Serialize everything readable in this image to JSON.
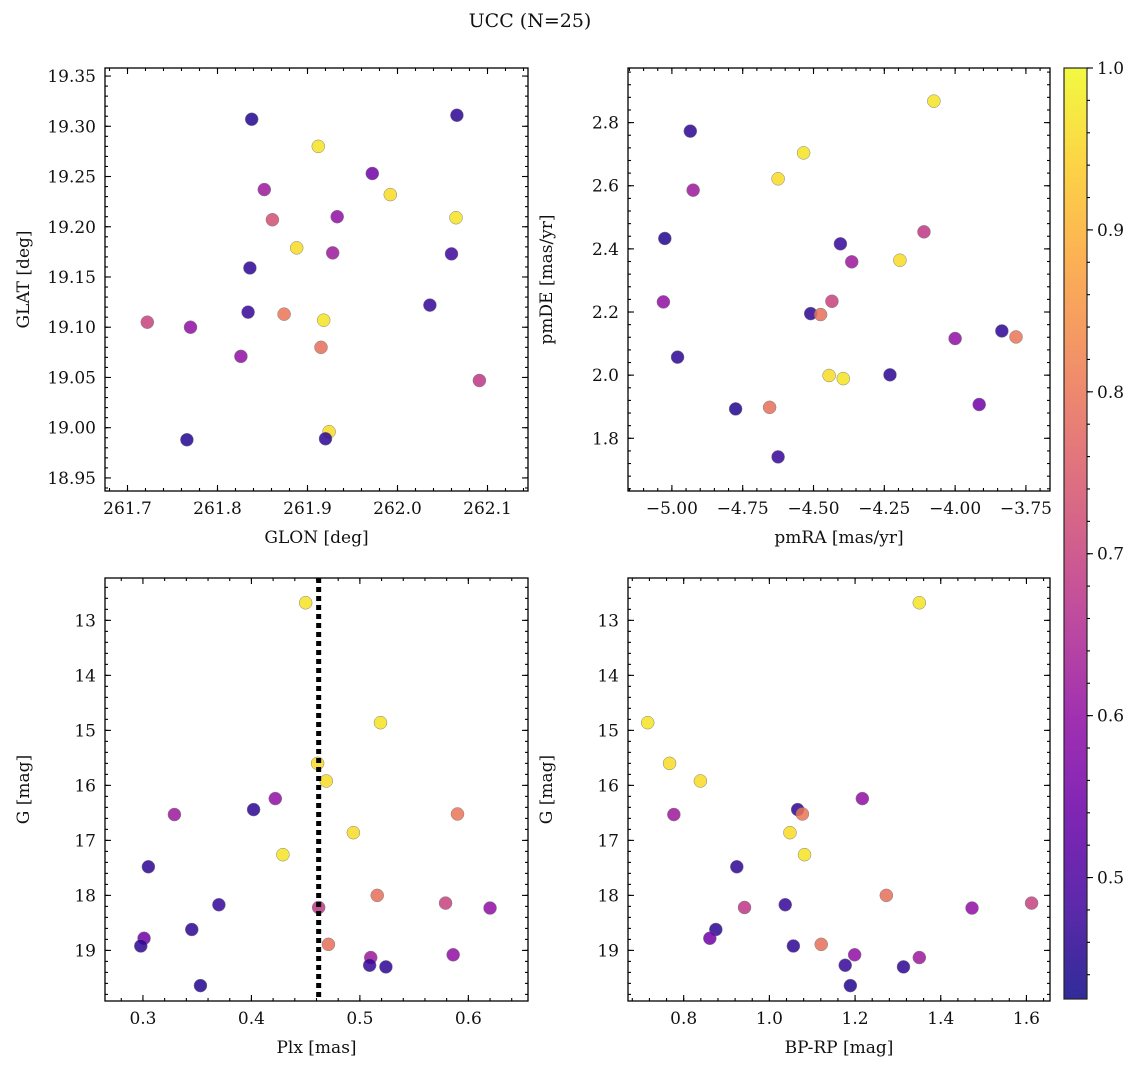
{
  "figure": {
    "title": "UCC (N=25)"
  },
  "colors": {
    "colormap": "plasma",
    "dotted_line": "#000000"
  },
  "chart_data": [
    {
      "type": "scatter",
      "id": "glon-glat",
      "xlabel": "GLON [deg]",
      "ylabel": "GLAT [deg]",
      "xlim": [
        261.675,
        262.145
      ],
      "ylim": [
        18.937,
        19.358
      ],
      "xticks": [
        261.7,
        261.8,
        261.9,
        262.0,
        262.1
      ],
      "xticklabels": [
        "261.7",
        "261.8",
        "261.9",
        "262.0",
        "262.1"
      ],
      "yticks": [
        18.95,
        19.0,
        19.05,
        19.1,
        19.15,
        19.2,
        19.25,
        19.3,
        19.35
      ],
      "yticklabels": [
        "18.95",
        "19.00",
        "19.05",
        "19.10",
        "19.15",
        "19.20",
        "19.25",
        "19.30",
        "19.35"
      ],
      "invert_y": false,
      "points": [
        {
          "x": 261.838,
          "y": 19.307,
          "c": 0.45
        },
        {
          "x": 262.066,
          "y": 19.311,
          "c": 0.46
        },
        {
          "x": 261.912,
          "y": 19.28,
          "c": 0.97
        },
        {
          "x": 261.972,
          "y": 19.253,
          "c": 0.55
        },
        {
          "x": 261.852,
          "y": 19.237,
          "c": 0.62
        },
        {
          "x": 261.992,
          "y": 19.232,
          "c": 0.96
        },
        {
          "x": 262.065,
          "y": 19.209,
          "c": 0.97
        },
        {
          "x": 261.861,
          "y": 19.207,
          "c": 0.73
        },
        {
          "x": 261.933,
          "y": 19.21,
          "c": 0.6
        },
        {
          "x": 261.888,
          "y": 19.179,
          "c": 0.96
        },
        {
          "x": 261.928,
          "y": 19.174,
          "c": 0.62
        },
        {
          "x": 262.06,
          "y": 19.173,
          "c": 0.48
        },
        {
          "x": 261.836,
          "y": 19.159,
          "c": 0.46
        },
        {
          "x": 262.036,
          "y": 19.122,
          "c": 0.47
        },
        {
          "x": 261.834,
          "y": 19.115,
          "c": 0.47
        },
        {
          "x": 261.874,
          "y": 19.113,
          "c": 0.8
        },
        {
          "x": 261.918,
          "y": 19.107,
          "c": 0.97
        },
        {
          "x": 261.722,
          "y": 19.105,
          "c": 0.7
        },
        {
          "x": 261.77,
          "y": 19.1,
          "c": 0.6
        },
        {
          "x": 261.915,
          "y": 19.08,
          "c": 0.79
        },
        {
          "x": 261.826,
          "y": 19.071,
          "c": 0.6
        },
        {
          "x": 262.091,
          "y": 19.047,
          "c": 0.68
        },
        {
          "x": 261.924,
          "y": 18.996,
          "c": 0.96
        },
        {
          "x": 261.766,
          "y": 18.988,
          "c": 0.45
        },
        {
          "x": 261.92,
          "y": 18.989,
          "c": 0.46
        }
      ]
    },
    {
      "type": "scatter",
      "id": "pm",
      "xlabel": "pmRA [mas/yr]",
      "ylabel": "pmDE [mas/yr]",
      "xlim": [
        -5.155,
        -3.665
      ],
      "ylim": [
        1.633,
        2.973
      ],
      "xticks": [
        -5.0,
        -4.75,
        -4.5,
        -4.25,
        -4.0,
        -3.75
      ],
      "xticklabels": [
        "−5.00",
        "−4.75",
        "−4.50",
        "−4.25",
        "−4.00",
        "−3.75"
      ],
      "yticks": [
        1.8,
        2.0,
        2.2,
        2.4,
        2.6,
        2.8
      ],
      "yticklabels": [
        "1.8",
        "2.0",
        "2.2",
        "2.4",
        "2.6",
        "2.8"
      ],
      "invert_y": false,
      "points": [
        {
          "x": -4.075,
          "y": 2.868,
          "c": 0.97
        },
        {
          "x": -4.935,
          "y": 2.773,
          "c": 0.46
        },
        {
          "x": -4.535,
          "y": 2.704,
          "c": 0.97
        },
        {
          "x": -4.625,
          "y": 2.622,
          "c": 0.96
        },
        {
          "x": -4.925,
          "y": 2.586,
          "c": 0.62
        },
        {
          "x": -4.11,
          "y": 2.454,
          "c": 0.68
        },
        {
          "x": -5.025,
          "y": 2.433,
          "c": 0.45
        },
        {
          "x": -4.405,
          "y": 2.416,
          "c": 0.47
        },
        {
          "x": -4.195,
          "y": 2.364,
          "c": 0.96
        },
        {
          "x": -4.365,
          "y": 2.359,
          "c": 0.62
        },
        {
          "x": -4.435,
          "y": 2.234,
          "c": 0.7
        },
        {
          "x": -5.03,
          "y": 2.232,
          "c": 0.6
        },
        {
          "x": -4.51,
          "y": 2.195,
          "c": 0.46
        },
        {
          "x": -4.475,
          "y": 2.192,
          "c": 0.79
        },
        {
          "x": -3.835,
          "y": 2.14,
          "c": 0.46
        },
        {
          "x": -3.785,
          "y": 2.121,
          "c": 0.8
        },
        {
          "x": -4.0,
          "y": 2.116,
          "c": 0.6
        },
        {
          "x": -4.98,
          "y": 2.057,
          "c": 0.46
        },
        {
          "x": -4.23,
          "y": 2.001,
          "c": 0.46
        },
        {
          "x": -4.445,
          "y": 1.999,
          "c": 0.96
        },
        {
          "x": -4.395,
          "y": 1.989,
          "c": 0.97
        },
        {
          "x": -3.915,
          "y": 1.907,
          "c": 0.55
        },
        {
          "x": -4.655,
          "y": 1.898,
          "c": 0.79
        },
        {
          "x": -4.775,
          "y": 1.893,
          "c": 0.45
        },
        {
          "x": -4.625,
          "y": 1.741,
          "c": 0.47
        }
      ]
    },
    {
      "type": "scatter",
      "id": "plx-g",
      "xlabel": "Plx [mas]",
      "ylabel": "G [mag]",
      "xlim": [
        0.265,
        0.655
      ],
      "ylim": [
        19.92,
        12.23
      ],
      "xticks": [
        0.3,
        0.4,
        0.5,
        0.6
      ],
      "xticklabels": [
        "0.3",
        "0.4",
        "0.5",
        "0.6"
      ],
      "yticks": [
        13,
        14,
        15,
        16,
        17,
        18,
        19
      ],
      "yticklabels": [
        "13",
        "14",
        "15",
        "16",
        "17",
        "18",
        "19"
      ],
      "invert_y": true,
      "vline": 0.462,
      "points": [
        {
          "x": 0.45,
          "y": 12.68,
          "c": 0.97
        },
        {
          "x": 0.519,
          "y": 14.86,
          "c": 0.97
        },
        {
          "x": 0.461,
          "y": 15.6,
          "c": 0.96
        },
        {
          "x": 0.469,
          "y": 15.92,
          "c": 0.96
        },
        {
          "x": 0.422,
          "y": 16.24,
          "c": 0.6
        },
        {
          "x": 0.402,
          "y": 16.44,
          "c": 0.46
        },
        {
          "x": 0.59,
          "y": 16.52,
          "c": 0.8
        },
        {
          "x": 0.329,
          "y": 16.53,
          "c": 0.62
        },
        {
          "x": 0.494,
          "y": 16.86,
          "c": 0.96
        },
        {
          "x": 0.429,
          "y": 17.26,
          "c": 0.97
        },
        {
          "x": 0.305,
          "y": 17.48,
          "c": 0.46
        },
        {
          "x": 0.516,
          "y": 18.0,
          "c": 0.79
        },
        {
          "x": 0.579,
          "y": 18.14,
          "c": 0.7
        },
        {
          "x": 0.37,
          "y": 18.17,
          "c": 0.47
        },
        {
          "x": 0.62,
          "y": 18.23,
          "c": 0.6
        },
        {
          "x": 0.462,
          "y": 18.22,
          "c": 0.68
        },
        {
          "x": 0.345,
          "y": 18.62,
          "c": 0.46
        },
        {
          "x": 0.301,
          "y": 18.78,
          "c": 0.55
        },
        {
          "x": 0.298,
          "y": 18.92,
          "c": 0.46
        },
        {
          "x": 0.471,
          "y": 18.89,
          "c": 0.79
        },
        {
          "x": 0.586,
          "y": 19.08,
          "c": 0.6
        },
        {
          "x": 0.51,
          "y": 19.13,
          "c": 0.62
        },
        {
          "x": 0.509,
          "y": 19.27,
          "c": 0.47
        },
        {
          "x": 0.524,
          "y": 19.3,
          "c": 0.46
        },
        {
          "x": 0.353,
          "y": 19.64,
          "c": 0.45
        }
      ]
    },
    {
      "type": "scatter",
      "id": "cmd",
      "xlabel": "BP-RP [mag]",
      "ylabel": "G [mag]",
      "xlim": [
        0.67,
        1.655
      ],
      "ylim": [
        19.92,
        12.23
      ],
      "xticks": [
        0.8,
        1.0,
        1.2,
        1.4,
        1.6
      ],
      "xticklabels": [
        "0.8",
        "1.0",
        "1.2",
        "1.4",
        "1.6"
      ],
      "yticks": [
        13,
        14,
        15,
        16,
        17,
        18,
        19
      ],
      "yticklabels": [
        "13",
        "14",
        "15",
        "16",
        "17",
        "18",
        "19"
      ],
      "invert_y": true,
      "points": [
        {
          "x": 1.35,
          "y": 12.68,
          "c": 0.97
        },
        {
          "x": 0.716,
          "y": 14.86,
          "c": 0.97
        },
        {
          "x": 0.767,
          "y": 15.6,
          "c": 0.96
        },
        {
          "x": 0.839,
          "y": 15.92,
          "c": 0.96
        },
        {
          "x": 1.217,
          "y": 16.24,
          "c": 0.6
        },
        {
          "x": 1.066,
          "y": 16.44,
          "c": 0.46
        },
        {
          "x": 1.077,
          "y": 16.52,
          "c": 0.8
        },
        {
          "x": 0.777,
          "y": 16.53,
          "c": 0.62
        },
        {
          "x": 1.048,
          "y": 16.86,
          "c": 0.96
        },
        {
          "x": 1.082,
          "y": 17.26,
          "c": 0.97
        },
        {
          "x": 0.924,
          "y": 17.48,
          "c": 0.46
        },
        {
          "x": 1.273,
          "y": 18.0,
          "c": 0.79
        },
        {
          "x": 1.612,
          "y": 18.14,
          "c": 0.7
        },
        {
          "x": 1.037,
          "y": 18.17,
          "c": 0.47
        },
        {
          "x": 1.473,
          "y": 18.23,
          "c": 0.6
        },
        {
          "x": 0.942,
          "y": 18.22,
          "c": 0.68
        },
        {
          "x": 0.875,
          "y": 18.62,
          "c": 0.46
        },
        {
          "x": 0.861,
          "y": 18.78,
          "c": 0.55
        },
        {
          "x": 1.056,
          "y": 18.92,
          "c": 0.46
        },
        {
          "x": 1.121,
          "y": 18.89,
          "c": 0.79
        },
        {
          "x": 1.199,
          "y": 19.08,
          "c": 0.6
        },
        {
          "x": 1.35,
          "y": 19.13,
          "c": 0.62
        },
        {
          "x": 1.177,
          "y": 19.27,
          "c": 0.47
        },
        {
          "x": 1.313,
          "y": 19.3,
          "c": 0.46
        },
        {
          "x": 1.189,
          "y": 19.64,
          "c": 0.45
        }
      ]
    }
  ],
  "colorbar": {
    "min": 0.425,
    "max": 1.0,
    "ticks": [
      0.5,
      0.6,
      0.7,
      0.8,
      0.9,
      1.0
    ],
    "ticklabels": [
      "0.5",
      "0.6",
      "0.7",
      "0.8",
      "0.9",
      "1.0"
    ]
  }
}
